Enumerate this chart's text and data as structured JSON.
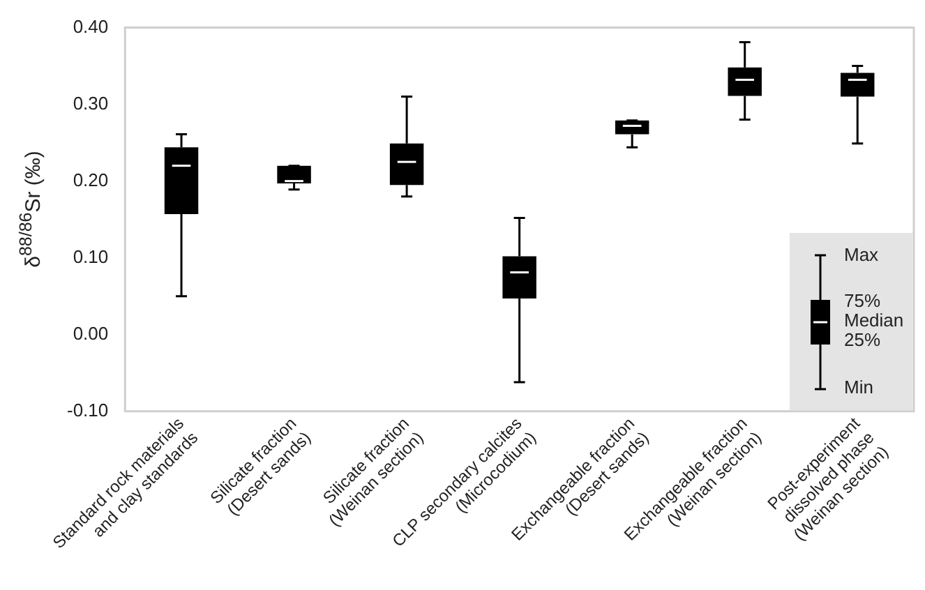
{
  "chart_data": {
    "type": "box",
    "ylabel": "δ$^{88/86}$Sr (‰)",
    "categories": [
      "Standard rock materials\nand clay standards",
      "Silicate fraction\n(Desert sands)",
      "Silicate fraction\n(Weinan section)",
      "CLP secondary calcites\n(Microcodium)",
      "Exchangeable fraction\n(Desert sands)",
      "Exchangeable fraction\n(Weinan section)",
      "Post-experiment\ndissolved phase\n(Weinan section)"
    ],
    "boxes": [
      {
        "low": 0.05,
        "q1": 0.157,
        "median": 0.22,
        "q3": 0.244,
        "high": 0.261
      },
      {
        "low": 0.189,
        "q1": 0.197,
        "median": 0.2,
        "q3": 0.22,
        "high": 0.22
      },
      {
        "low": 0.18,
        "q1": 0.195,
        "median": 0.225,
        "q3": 0.249,
        "high": 0.31
      },
      {
        "low": -0.062,
        "q1": 0.047,
        "median": 0.081,
        "q3": 0.102,
        "high": 0.152
      },
      {
        "low": 0.244,
        "q1": 0.261,
        "median": 0.272,
        "q3": 0.279,
        "high": 0.279
      },
      {
        "low": 0.28,
        "q1": 0.311,
        "median": 0.332,
        "q3": 0.348,
        "high": 0.381
      },
      {
        "low": 0.249,
        "q1": 0.31,
        "median": 0.332,
        "q3": 0.341,
        "high": 0.35
      }
    ],
    "color": "#000000",
    "ylim": [
      -0.1,
      0.4
    ],
    "yticks": [
      {
        "value": -0.1,
        "label": "-0.10"
      },
      {
        "value": 0,
        "label": "0.00"
      },
      {
        "value": 0.1,
        "label": "0.10"
      },
      {
        "value": 0.2,
        "label": "0.20"
      },
      {
        "value": 0.3,
        "label": "0.30"
      },
      {
        "value": 0.4,
        "label": "0.40"
      }
    ],
    "grid": false,
    "annotations": [
      "Max",
      "75%",
      "Median",
      "25%",
      "Min"
    ]
  }
}
